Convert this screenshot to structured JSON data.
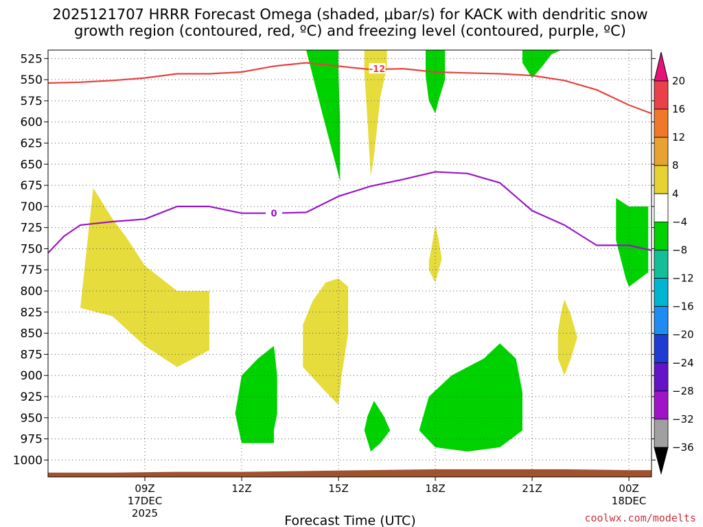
{
  "title": {
    "line1": "2025121707 HRRR Forecast Omega (shaded, μbar/s) for KACK with dendritic snow",
    "line2": "growth region (contoured, red, ºC) and freezing level (contoured, purple, ºC)"
  },
  "credit": "coolwx.com/modelts",
  "colors": {
    "dgz_contour": "#e8413c",
    "freezing_contour": "#9a14c8",
    "ground": "#a0522d",
    "grid": "#555555"
  },
  "chart_data": {
    "type": "heatmap",
    "xlabel": "Forecast Time (UTC)",
    "x_units": "forecast hour from 2025-12-17 07Z",
    "xlim": [
      6.0,
      24.7
    ],
    "y_units": "hPa",
    "ylim": [
      515,
      1020
    ],
    "y_ticks": [
      525,
      550,
      575,
      600,
      625,
      650,
      675,
      700,
      725,
      750,
      775,
      800,
      825,
      850,
      875,
      900,
      925,
      950,
      975,
      1000
    ],
    "x_ticks": [
      {
        "x": 9,
        "label": "09Z",
        "sub1": "17DEC",
        "sub2": "2025"
      },
      {
        "x": 12,
        "label": "12Z",
        "sub1": "",
        "sub2": ""
      },
      {
        "x": 15,
        "label": "15Z",
        "sub1": "",
        "sub2": ""
      },
      {
        "x": 18,
        "label": "18Z",
        "sub1": "",
        "sub2": ""
      },
      {
        "x": 21,
        "label": "21Z",
        "sub1": "",
        "sub2": ""
      },
      {
        "x": 24,
        "label": "00Z",
        "sub1": "18DEC",
        "sub2": ""
      }
    ],
    "grid": true,
    "colorbar": {
      "levels": [
        {
          "value": "20",
          "color": "#e8414a"
        },
        {
          "value": "16",
          "color": "#f0782a"
        },
        {
          "value": "12",
          "color": "#e8a232"
        },
        {
          "value": "8",
          "color": "#e6d232"
        },
        {
          "value": "4",
          "color": "#ffffff"
        },
        {
          "value": "−4",
          "color": "#00d200"
        },
        {
          "value": "−8",
          "color": "#14be96"
        },
        {
          "value": "−12",
          "color": "#00b4d2"
        },
        {
          "value": "−16",
          "color": "#1e8cf0"
        },
        {
          "value": "−20",
          "color": "#1e3cd2"
        },
        {
          "value": "−24",
          "color": "#6414c8"
        },
        {
          "value": "−28",
          "color": "#a014c8"
        },
        {
          "value": "−32",
          "color": "#a0a0a0"
        },
        {
          "value": "−36",
          "color": ""
        }
      ],
      "top_arrow_color": "#e61478",
      "bottom_arrow_color": "#000000"
    },
    "shaded_regions": [
      {
        "name": "yellow",
        "color": "#e6dc3c",
        "points": [
          [
            7.0,
            820
          ],
          [
            7.4,
            678
          ],
          [
            8.0,
            715
          ],
          [
            8.4,
            735
          ],
          [
            9.0,
            770
          ],
          [
            10.0,
            800
          ],
          [
            11.0,
            800
          ],
          [
            11.0,
            870
          ],
          [
            10.0,
            890
          ],
          [
            9.0,
            865
          ],
          [
            8.0,
            830
          ],
          [
            7.0,
            820
          ]
        ]
      },
      {
        "name": "yellow",
        "color": "#e6dc3c",
        "points": [
          [
            13.9,
            840
          ],
          [
            14.2,
            812
          ],
          [
            14.6,
            790
          ],
          [
            15.0,
            785
          ],
          [
            15.3,
            795
          ],
          [
            15.3,
            850
          ],
          [
            15.1,
            900
          ],
          [
            15.0,
            935
          ],
          [
            14.5,
            915
          ],
          [
            13.9,
            890
          ],
          [
            13.9,
            840
          ]
        ]
      },
      {
        "name": "yellow",
        "color": "#e6dc3c",
        "points": [
          [
            15.8,
            515
          ],
          [
            16.5,
            515
          ],
          [
            16.5,
            535
          ],
          [
            16.3,
            570
          ],
          [
            16.1,
            640
          ],
          [
            16.0,
            665
          ],
          [
            15.9,
            600
          ],
          [
            15.8,
            540
          ],
          [
            15.8,
            515
          ]
        ]
      },
      {
        "name": "yellow",
        "color": "#e6dc3c",
        "points": [
          [
            17.8,
            765
          ],
          [
            17.9,
            745
          ],
          [
            18.0,
            722
          ],
          [
            18.1,
            738
          ],
          [
            18.2,
            762
          ],
          [
            18.0,
            790
          ],
          [
            17.8,
            775
          ],
          [
            17.8,
            765
          ]
        ]
      },
      {
        "name": "yellow",
        "color": "#e6dc3c",
        "points": [
          [
            21.8,
            848
          ],
          [
            21.9,
            825
          ],
          [
            22.0,
            810
          ],
          [
            22.2,
            828
          ],
          [
            22.4,
            855
          ],
          [
            22.2,
            880
          ],
          [
            22.0,
            900
          ],
          [
            21.8,
            880
          ],
          [
            21.8,
            848
          ]
        ]
      },
      {
        "name": "green",
        "color": "#00d200",
        "points": [
          [
            14.0,
            515
          ],
          [
            15.0,
            515
          ],
          [
            15.0,
            540
          ],
          [
            15.05,
            600
          ],
          [
            15.05,
            670
          ],
          [
            14.5,
            590
          ],
          [
            14.2,
            545
          ],
          [
            14.0,
            515
          ]
        ]
      },
      {
        "name": "green",
        "color": "#00d200",
        "points": [
          [
            17.7,
            515
          ],
          [
            18.3,
            515
          ],
          [
            18.3,
            550
          ],
          [
            18.1,
            575
          ],
          [
            18.0,
            590
          ],
          [
            17.8,
            575
          ],
          [
            17.7,
            545
          ],
          [
            17.7,
            515
          ]
        ]
      },
      {
        "name": "green",
        "color": "#00d200",
        "points": [
          [
            20.7,
            515
          ],
          [
            21.9,
            515
          ],
          [
            21.6,
            520
          ],
          [
            21.3,
            535
          ],
          [
            21.0,
            548
          ],
          [
            20.7,
            530
          ],
          [
            20.7,
            515
          ]
        ]
      },
      {
        "name": "green",
        "color": "#00d200",
        "points": [
          [
            23.6,
            690
          ],
          [
            24.0,
            700
          ],
          [
            24.5,
            700
          ],
          [
            24.6,
            700
          ],
          [
            24.6,
            778
          ],
          [
            24.0,
            795
          ],
          [
            23.9,
            785
          ],
          [
            23.6,
            740
          ],
          [
            23.6,
            690
          ]
        ]
      },
      {
        "name": "green",
        "color": "#00d200",
        "points": [
          [
            11.8,
            945
          ],
          [
            12.0,
            900
          ],
          [
            12.5,
            880
          ],
          [
            13.0,
            865
          ],
          [
            13.1,
            900
          ],
          [
            13.1,
            945
          ],
          [
            13.0,
            965
          ],
          [
            13.0,
            980
          ],
          [
            12.0,
            980
          ],
          [
            11.8,
            945
          ]
        ]
      },
      {
        "name": "green",
        "color": "#00d200",
        "points": [
          [
            15.8,
            965
          ],
          [
            15.9,
            948
          ],
          [
            16.1,
            930
          ],
          [
            16.4,
            948
          ],
          [
            16.6,
            965
          ],
          [
            16.3,
            980
          ],
          [
            16.0,
            990
          ],
          [
            15.8,
            965
          ]
        ]
      },
      {
        "name": "green",
        "color": "#00d200",
        "points": [
          [
            17.5,
            965
          ],
          [
            17.8,
            925
          ],
          [
            18.5,
            900
          ],
          [
            19.0,
            890
          ],
          [
            19.5,
            880
          ],
          [
            20.0,
            862
          ],
          [
            20.5,
            880
          ],
          [
            20.7,
            920
          ],
          [
            20.7,
            965
          ],
          [
            20.0,
            985
          ],
          [
            19.0,
            990
          ],
          [
            18.0,
            985
          ],
          [
            17.5,
            965
          ]
        ]
      }
    ],
    "contour_series": [
      {
        "name": "-12",
        "color": "#e8413c",
        "label_at": [
          16.2,
          537
        ],
        "points": [
          [
            6.0,
            554
          ],
          [
            7.0,
            553
          ],
          [
            8.0,
            551
          ],
          [
            9.0,
            548
          ],
          [
            10.0,
            543
          ],
          [
            11.0,
            543
          ],
          [
            12.0,
            541
          ],
          [
            13.0,
            534
          ],
          [
            14.0,
            530
          ],
          [
            15.0,
            534
          ],
          [
            16.0,
            538
          ],
          [
            17.0,
            537
          ],
          [
            18.0,
            541
          ],
          [
            19.0,
            542
          ],
          [
            20.0,
            543
          ],
          [
            21.0,
            545
          ],
          [
            22.0,
            551
          ],
          [
            23.0,
            562
          ],
          [
            24.0,
            580
          ],
          [
            24.8,
            590
          ]
        ]
      },
      {
        "name": "0",
        "color": "#9a14c8",
        "label_at": [
          13.0,
          708
        ],
        "points": [
          [
            6.0,
            755
          ],
          [
            6.5,
            735
          ],
          [
            7.0,
            722
          ],
          [
            8.0,
            718
          ],
          [
            9.0,
            715
          ],
          [
            10.0,
            700
          ],
          [
            11.0,
            700
          ],
          [
            12.0,
            708
          ],
          [
            13.0,
            708
          ],
          [
            14.0,
            707
          ],
          [
            15.0,
            688
          ],
          [
            16.0,
            676
          ],
          [
            17.0,
            668
          ],
          [
            18.0,
            659
          ],
          [
            19.0,
            661
          ],
          [
            20.0,
            672
          ],
          [
            21.0,
            705
          ],
          [
            22.0,
            722
          ],
          [
            23.0,
            746
          ],
          [
            24.0,
            746
          ],
          [
            24.8,
            752
          ]
        ]
      }
    ],
    "ground": {
      "color": "#a0522d",
      "points": [
        [
          6.0,
          1015
        ],
        [
          8.0,
          1015
        ],
        [
          10.0,
          1014
        ],
        [
          12.0,
          1014
        ],
        [
          14.0,
          1013
        ],
        [
          16.0,
          1012
        ],
        [
          18.0,
          1011
        ],
        [
          20.0,
          1011
        ],
        [
          22.0,
          1011
        ],
        [
          24.0,
          1012
        ],
        [
          24.8,
          1012
        ]
      ]
    }
  }
}
